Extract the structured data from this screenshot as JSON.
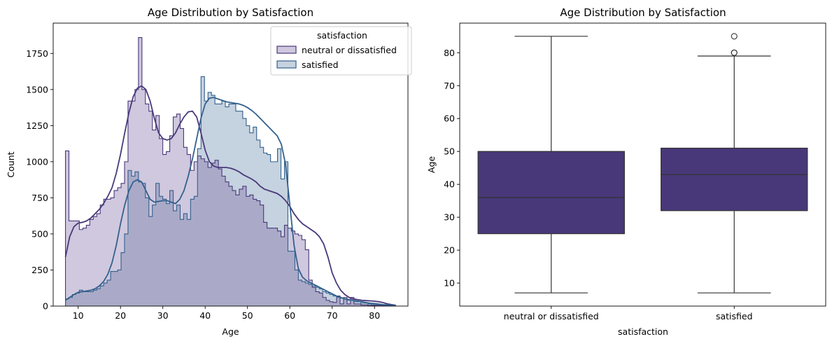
{
  "colors": {
    "neutral": "#49397a",
    "satisfied": "#33608d",
    "neutral_fill": "#cfc8de",
    "satisfied_fill": "#c5d2df",
    "overlap_fill": "#aaaac8",
    "box": "#483879",
    "line": "#333333"
  },
  "chart_data": [
    {
      "type": "histogram",
      "title": "Age Distribution by Satisfaction",
      "xlabel": "Age",
      "ylabel": "Count",
      "xlim": [
        4.1,
        87.9
      ],
      "ylim": [
        0,
        1960
      ],
      "xticks": [
        10,
        20,
        30,
        40,
        50,
        60,
        70,
        80
      ],
      "yticks": [
        0,
        250,
        500,
        750,
        1000,
        1250,
        1500,
        1750
      ],
      "grid": false,
      "legend": {
        "title": "satisfaction",
        "placement": "top-right",
        "entries": [
          "neutral or dissatisfied",
          "satisfied"
        ]
      },
      "bins": {
        "start": 7,
        "end": 85,
        "count": 95
      },
      "series": [
        {
          "name": "neutral or dissatisfied",
          "color": "neutral",
          "counts": [
            1075,
            590,
            590,
            590,
            530,
            540,
            560,
            600,
            620,
            640,
            700,
            740,
            740,
            750,
            800,
            820,
            850,
            1000,
            1420,
            1420,
            1500,
            1860,
            1500,
            1400,
            1350,
            1220,
            1320,
            1160,
            1050,
            1070,
            1180,
            1310,
            1330,
            1230,
            1100,
            1050,
            940,
            1000,
            1040,
            1020,
            1000,
            960,
            990,
            1010,
            950,
            900,
            860,
            830,
            800,
            770,
            810,
            830,
            760,
            770,
            740,
            730,
            700,
            580,
            540,
            540,
            540,
            520,
            480,
            560,
            540,
            520,
            500,
            490,
            460,
            390,
            180,
            130,
            100,
            90,
            60,
            40,
            30,
            25,
            70,
            15,
            60,
            15,
            60,
            15,
            15,
            8,
            8,
            5,
            5,
            4,
            4,
            3,
            3,
            3,
            3
          ],
          "kde": [
            [
              7,
              340
            ],
            [
              8,
              480
            ],
            [
              9,
              550
            ],
            [
              10,
              575
            ],
            [
              11,
              580
            ],
            [
              12,
              590
            ],
            [
              13,
              610
            ],
            [
              14,
              640
            ],
            [
              15,
              670
            ],
            [
              16,
              710
            ],
            [
              17,
              760
            ],
            [
              18,
              820
            ],
            [
              19,
              920
            ],
            [
              20,
              1050
            ],
            [
              21,
              1200
            ],
            [
              22,
              1340
            ],
            [
              23,
              1450
            ],
            [
              24,
              1510
            ],
            [
              25,
              1525
            ],
            [
              26,
              1500
            ],
            [
              27,
              1420
            ],
            [
              28,
              1300
            ],
            [
              29,
              1200
            ],
            [
              30,
              1160
            ],
            [
              31,
              1150
            ],
            [
              32,
              1160
            ],
            [
              33,
              1200
            ],
            [
              34,
              1260
            ],
            [
              35,
              1310
            ],
            [
              36,
              1345
            ],
            [
              37,
              1350
            ],
            [
              38,
              1310
            ],
            [
              39,
              1200
            ],
            [
              40,
              1080
            ],
            [
              41,
              1000
            ],
            [
              42,
              970
            ],
            [
              43,
              960
            ],
            [
              44,
              960
            ],
            [
              45,
              960
            ],
            [
              46,
              955
            ],
            [
              47,
              945
            ],
            [
              48,
              930
            ],
            [
              49,
              910
            ],
            [
              50,
              895
            ],
            [
              51,
              880
            ],
            [
              52,
              860
            ],
            [
              53,
              830
            ],
            [
              54,
              810
            ],
            [
              55,
              800
            ],
            [
              56,
              790
            ],
            [
              57,
              780
            ],
            [
              58,
              760
            ],
            [
              59,
              730
            ],
            [
              60,
              690
            ],
            [
              61,
              640
            ],
            [
              62,
              600
            ],
            [
              63,
              570
            ],
            [
              64,
              550
            ],
            [
              65,
              530
            ],
            [
              66,
              510
            ],
            [
              67,
              480
            ],
            [
              68,
              430
            ],
            [
              69,
              340
            ],
            [
              70,
              230
            ],
            [
              71,
              160
            ],
            [
              72,
              110
            ],
            [
              73,
              80
            ],
            [
              74,
              60
            ],
            [
              75,
              50
            ],
            [
              76,
              45
            ],
            [
              77,
              40
            ],
            [
              78,
              38
            ],
            [
              79,
              36
            ],
            [
              80,
              34
            ],
            [
              81,
              30
            ],
            [
              82,
              24
            ],
            [
              83,
              16
            ],
            [
              84,
              10
            ],
            [
              85,
              6
            ]
          ]
        },
        {
          "name": "satisfied",
          "color": "satisfied",
          "counts": [
            50,
            60,
            80,
            90,
            110,
            100,
            100,
            100,
            110,
            120,
            140,
            160,
            180,
            240,
            240,
            250,
            370,
            500,
            940,
            900,
            930,
            860,
            850,
            750,
            620,
            700,
            850,
            760,
            740,
            710,
            800,
            660,
            700,
            600,
            640,
            600,
            740,
            760,
            1090,
            1590,
            1420,
            1480,
            1460,
            1400,
            1400,
            1420,
            1380,
            1400,
            1400,
            1350,
            1350,
            1300,
            1250,
            1200,
            1240,
            1150,
            1100,
            1060,
            1050,
            1000,
            1000,
            1090,
            880,
            1000,
            380,
            380,
            250,
            180,
            170,
            160,
            150,
            140,
            130,
            120,
            100,
            90,
            80,
            70,
            60,
            55,
            50,
            40,
            40,
            30,
            30,
            20,
            20,
            15,
            10,
            10,
            10,
            8,
            6,
            5,
            4
          ],
          "kde": [
            [
              7,
              40
            ],
            [
              8,
              60
            ],
            [
              9,
              80
            ],
            [
              10,
              95
            ],
            [
              11,
              100
            ],
            [
              12,
              105
            ],
            [
              13,
              110
            ],
            [
              14,
              120
            ],
            [
              15,
              140
            ],
            [
              16,
              170
            ],
            [
              17,
              220
            ],
            [
              18,
              300
            ],
            [
              19,
              420
            ],
            [
              20,
              570
            ],
            [
              21,
              700
            ],
            [
              22,
              800
            ],
            [
              23,
              860
            ],
            [
              24,
              875
            ],
            [
              25,
              860
            ],
            [
              26,
              800
            ],
            [
              27,
              740
            ],
            [
              28,
              720
            ],
            [
              29,
              725
            ],
            [
              30,
              730
            ],
            [
              31,
              730
            ],
            [
              32,
              720
            ],
            [
              33,
              710
            ],
            [
              34,
              740
            ],
            [
              35,
              800
            ],
            [
              36,
              900
            ],
            [
              37,
              1020
            ],
            [
              38,
              1160
            ],
            [
              39,
              1300
            ],
            [
              40,
              1400
            ],
            [
              41,
              1440
            ],
            [
              42,
              1445
            ],
            [
              43,
              1435
            ],
            [
              44,
              1425
            ],
            [
              45,
              1415
            ],
            [
              46,
              1410
            ],
            [
              47,
              1405
            ],
            [
              48,
              1400
            ],
            [
              49,
              1390
            ],
            [
              50,
              1375
            ],
            [
              51,
              1355
            ],
            [
              52,
              1330
            ],
            [
              53,
              1300
            ],
            [
              54,
              1270
            ],
            [
              55,
              1240
            ],
            [
              56,
              1210
            ],
            [
              57,
              1180
            ],
            [
              58,
              1120
            ],
            [
              59,
              980
            ],
            [
              60,
              700
            ],
            [
              61,
              420
            ],
            [
              62,
              260
            ],
            [
              63,
              200
            ],
            [
              64,
              175
            ],
            [
              65,
              160
            ],
            [
              66,
              145
            ],
            [
              67,
              130
            ],
            [
              68,
              115
            ],
            [
              69,
              100
            ],
            [
              70,
              85
            ],
            [
              71,
              70
            ],
            [
              72,
              60
            ],
            [
              73,
              50
            ],
            [
              74,
              45
            ],
            [
              75,
              40
            ],
            [
              76,
              35
            ],
            [
              77,
              30
            ],
            [
              78,
              25
            ],
            [
              79,
              20
            ],
            [
              80,
              18
            ],
            [
              81,
              14
            ],
            [
              82,
              10
            ],
            [
              83,
              8
            ],
            [
              84,
              6
            ],
            [
              85,
              5
            ]
          ]
        }
      ]
    },
    {
      "type": "box",
      "title": "Age Distribution by Satisfaction",
      "xlabel": "satisfaction",
      "ylabel": "Age",
      "ylim": [
        3,
        89
      ],
      "yticks": [
        10,
        20,
        30,
        40,
        50,
        60,
        70,
        80
      ],
      "categories": [
        "neutral or dissatisfied",
        "satisfied"
      ],
      "boxes": [
        {
          "whisker_low": 7,
          "q1": 25,
          "median": 36,
          "q3": 50,
          "whisker_high": 85,
          "outliers": []
        },
        {
          "whisker_low": 7,
          "q1": 32,
          "median": 43,
          "q3": 51,
          "whisker_high": 79,
          "outliers": [
            80,
            80,
            85
          ]
        }
      ]
    }
  ]
}
